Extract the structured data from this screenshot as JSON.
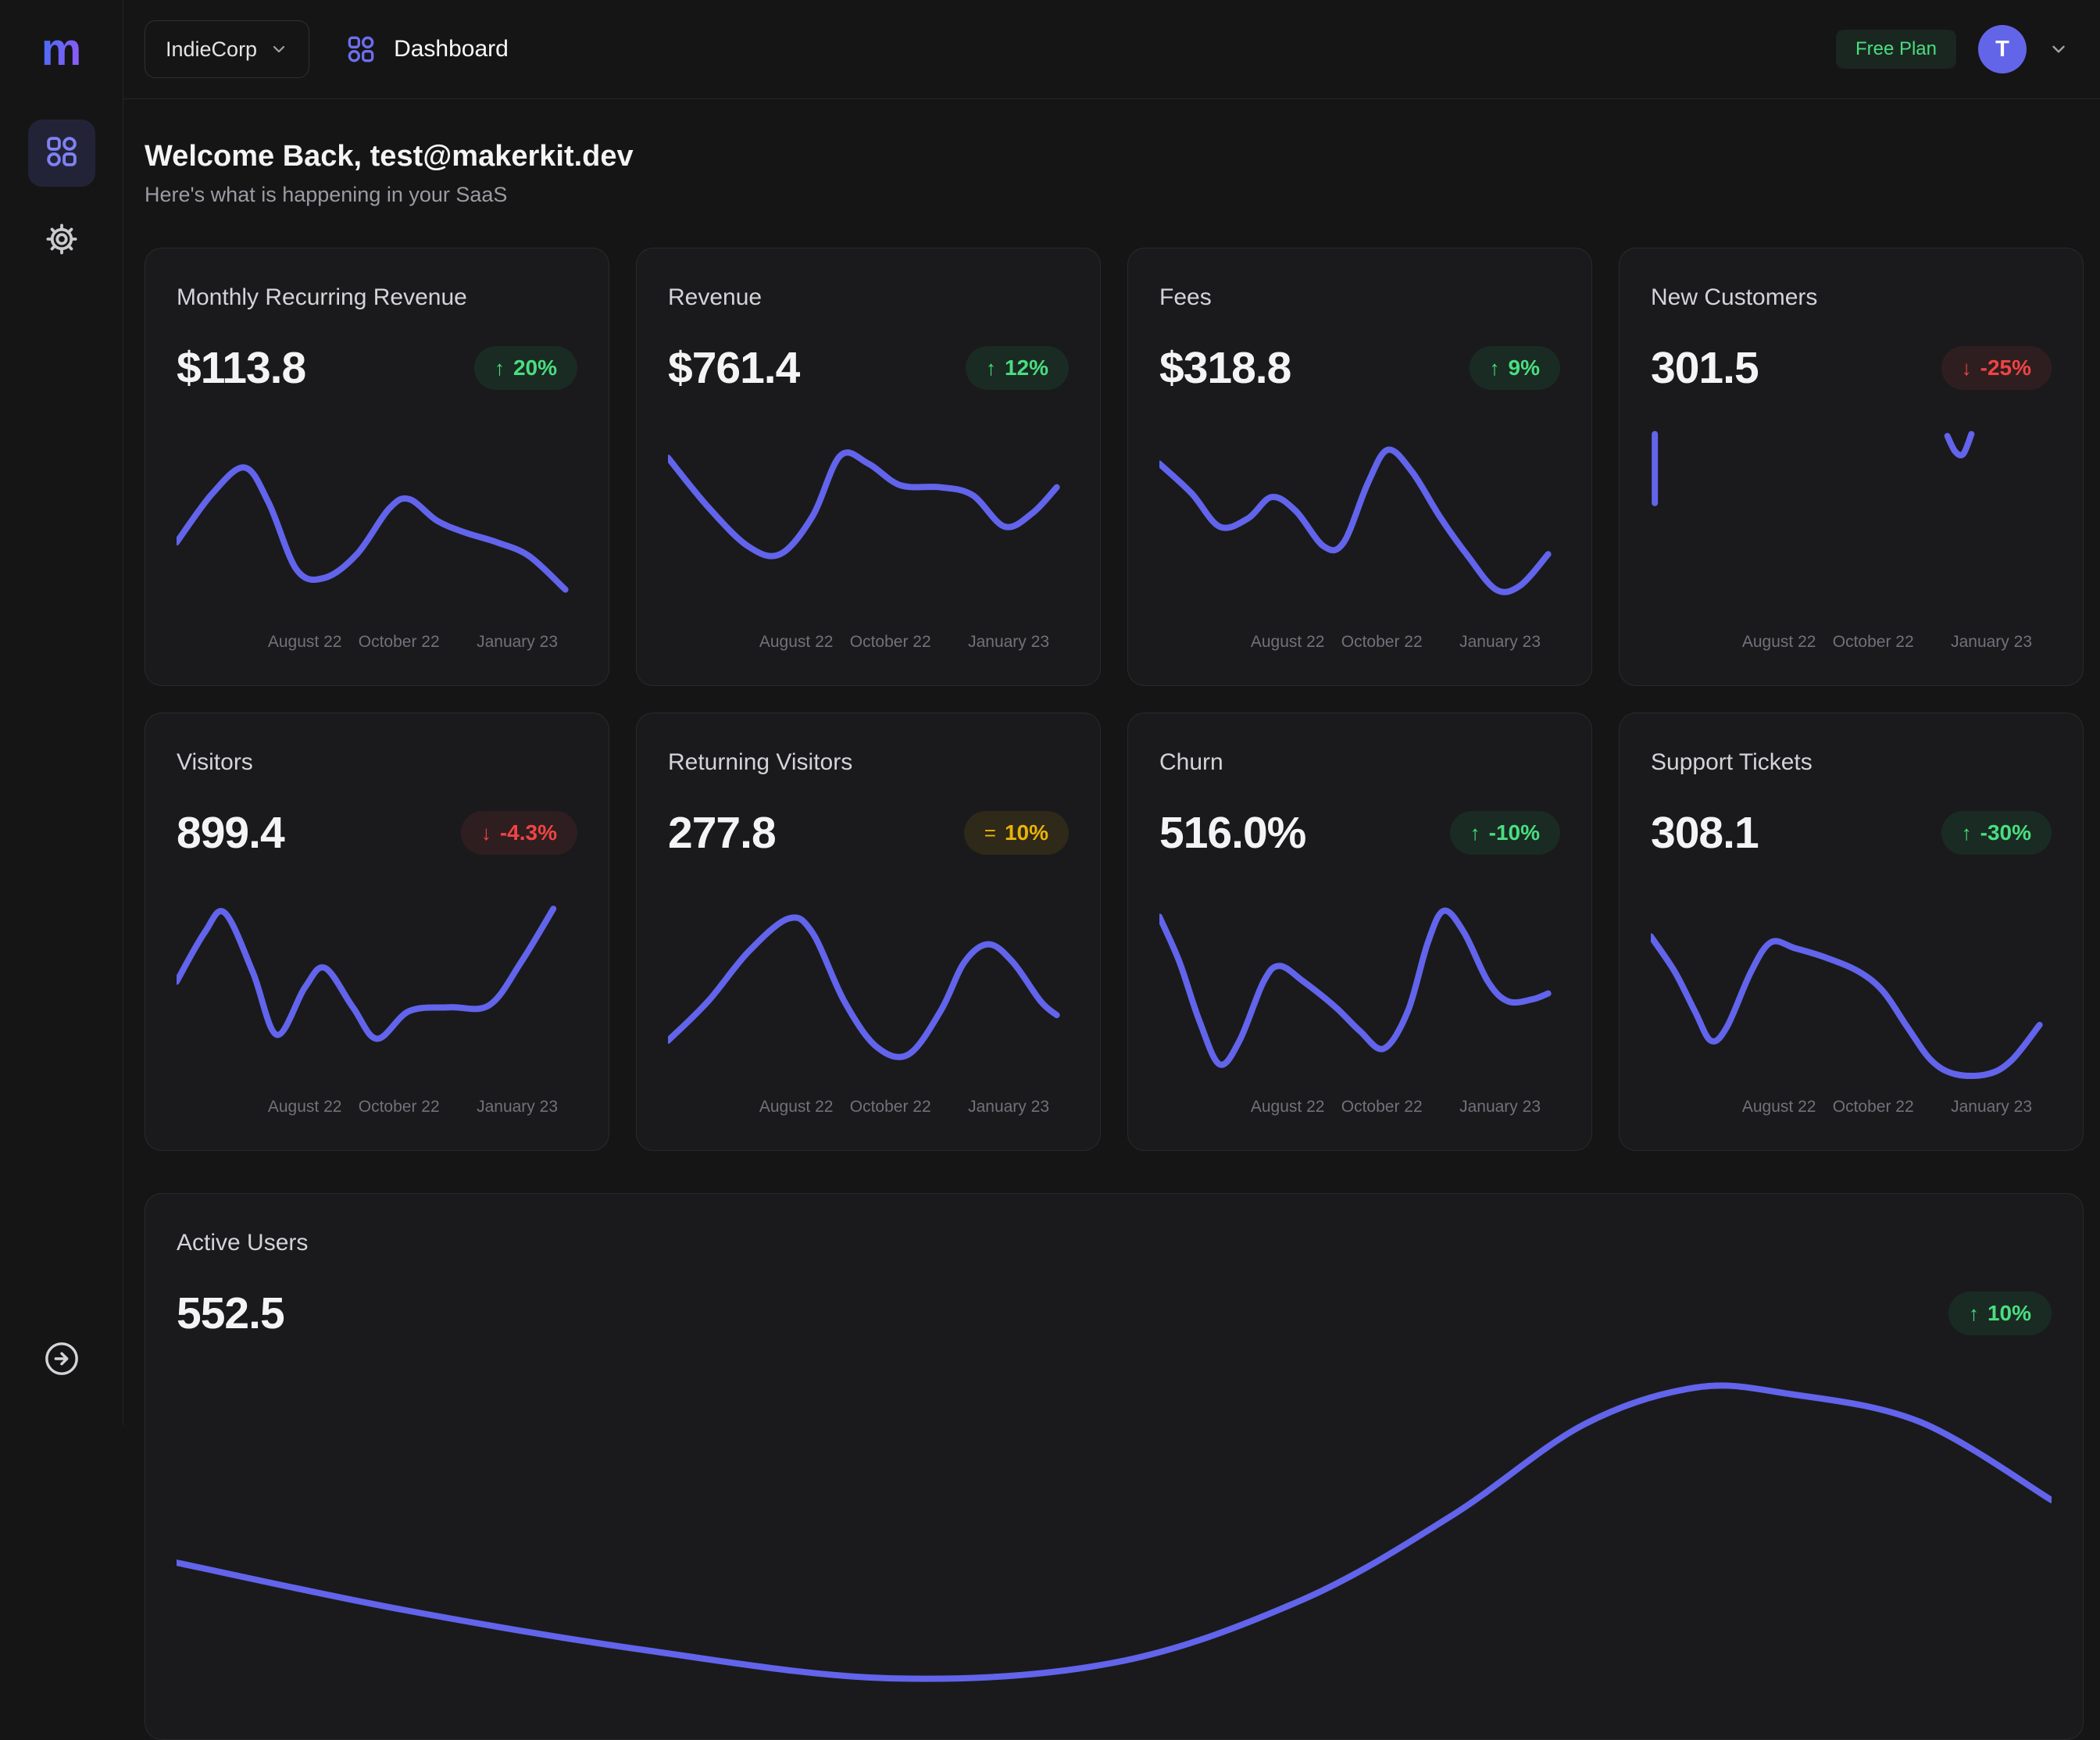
{
  "brand": {
    "logo_letter": "m"
  },
  "sidebar": {
    "items": [
      {
        "icon": "dashboard-grid-icon",
        "active": true
      },
      {
        "icon": "settings-gear-icon",
        "active": false
      }
    ],
    "bottom_icon": "expand-arrow-icon"
  },
  "topbar": {
    "workspace": "IndieCorp",
    "page_title": "Dashboard",
    "plan_badge": "Free Plan",
    "avatar_letter": "T"
  },
  "header": {
    "title": "Welcome Back, test@makerkit.dev",
    "subtitle": "Here's what is happening in your SaaS"
  },
  "colors": {
    "accent": "#6264ec",
    "green": "#4ade80",
    "red": "#ef4444",
    "amber": "#eab308"
  },
  "chart_data": {
    "type": "line",
    "x_labels": [
      "August 22",
      "October 22",
      "January 23"
    ],
    "cards": [
      {
        "title": "Monthly Recurring Revenue",
        "value": "$113.8",
        "symbol": "↑",
        "change": "20%",
        "tone": "green",
        "segments": [
          [
            [
              0,
              58
            ],
            [
              9,
              33
            ],
            [
              17,
              20
            ],
            [
              23,
              38
            ],
            [
              30,
              72
            ],
            [
              37,
              76
            ],
            [
              45,
              64
            ],
            [
              53,
              41
            ],
            [
              58,
              36
            ],
            [
              65,
              47
            ],
            [
              72,
              53
            ],
            [
              80,
              58
            ],
            [
              88,
              65
            ],
            [
              97,
              82
            ]
          ]
        ]
      },
      {
        "title": "Revenue",
        "value": "$761.4",
        "symbol": "↑",
        "change": "12%",
        "tone": "green",
        "segments": [
          [
            [
              0,
              15
            ],
            [
              10,
              40
            ],
            [
              20,
              60
            ],
            [
              28,
              64
            ],
            [
              36,
              45
            ],
            [
              43,
              14
            ],
            [
              50,
              18
            ],
            [
              58,
              29
            ],
            [
              68,
              30
            ],
            [
              76,
              34
            ],
            [
              84,
              50
            ],
            [
              91,
              43
            ],
            [
              97,
              30
            ]
          ]
        ]
      },
      {
        "title": "Fees",
        "value": "$318.8",
        "symbol": "↑",
        "change": "9%",
        "tone": "green",
        "segments": [
          [
            [
              0,
              18
            ],
            [
              8,
              33
            ],
            [
              15,
              50
            ],
            [
              22,
              46
            ],
            [
              28,
              35
            ],
            [
              34,
              42
            ],
            [
              41,
              60
            ],
            [
              46,
              58
            ],
            [
              52,
              28
            ],
            [
              57,
              11
            ],
            [
              63,
              22
            ],
            [
              70,
              45
            ],
            [
              77,
              65
            ],
            [
              84,
              82
            ],
            [
              90,
              80
            ],
            [
              97,
              64
            ]
          ]
        ]
      },
      {
        "title": "New Customers",
        "value": "301.5",
        "symbol": "↓",
        "change": "-25%",
        "tone": "red",
        "segments": [
          [
            [
              1,
              3
            ],
            [
              1,
              38
            ]
          ],
          [
            [
              74,
              4
            ],
            [
              76,
              12
            ],
            [
              78,
              13
            ],
            [
              80,
              3
            ]
          ]
        ]
      },
      {
        "title": "Visitors",
        "value": "899.4",
        "symbol": "↓",
        "change": "-4.3%",
        "tone": "red",
        "segments": [
          [
            [
              0,
              45
            ],
            [
              7,
              20
            ],
            [
              12,
              10
            ],
            [
              19,
              40
            ],
            [
              25,
              72
            ],
            [
              32,
              48
            ],
            [
              37,
              38
            ],
            [
              44,
              58
            ],
            [
              50,
              74
            ],
            [
              58,
              60
            ],
            [
              68,
              58
            ],
            [
              78,
              57
            ],
            [
              86,
              35
            ],
            [
              94,
              8
            ]
          ]
        ]
      },
      {
        "title": "Returning Visitors",
        "value": "277.8",
        "symbol": "=",
        "change": "10%",
        "tone": "amber",
        "segments": [
          [
            [
              0,
              75
            ],
            [
              10,
              55
            ],
            [
              20,
              30
            ],
            [
              30,
              13
            ],
            [
              36,
              20
            ],
            [
              44,
              55
            ],
            [
              52,
              78
            ],
            [
              60,
              82
            ],
            [
              68,
              60
            ],
            [
              74,
              35
            ],
            [
              80,
              26
            ],
            [
              86,
              35
            ],
            [
              93,
              55
            ],
            [
              97,
              62
            ]
          ]
        ]
      },
      {
        "title": "Churn",
        "value": "516.0%",
        "symbol": "↑",
        "change": "-10%",
        "tone": "green",
        "segments": [
          [
            [
              0,
              12
            ],
            [
              5,
              35
            ],
            [
              10,
              65
            ],
            [
              15,
              87
            ],
            [
              20,
              75
            ],
            [
              26,
              45
            ],
            [
              30,
              37
            ],
            [
              36,
              45
            ],
            [
              44,
              58
            ],
            [
              50,
              70
            ],
            [
              56,
              79
            ],
            [
              62,
              60
            ],
            [
              67,
              25
            ],
            [
              71,
              9
            ],
            [
              76,
              20
            ],
            [
              82,
              45
            ],
            [
              87,
              55
            ],
            [
              93,
              54
            ],
            [
              97,
              51
            ]
          ]
        ]
      },
      {
        "title": "Support Tickets",
        "value": "308.1",
        "symbol": "↑",
        "change": "-30%",
        "tone": "green",
        "segments": [
          [
            [
              0,
              22
            ],
            [
              6,
              40
            ],
            [
              11,
              60
            ],
            [
              15,
              75
            ],
            [
              19,
              68
            ],
            [
              25,
              40
            ],
            [
              30,
              25
            ],
            [
              36,
              28
            ],
            [
              44,
              33
            ],
            [
              52,
              40
            ],
            [
              58,
              50
            ],
            [
              64,
              68
            ],
            [
              70,
              85
            ],
            [
              76,
              92
            ],
            [
              84,
              92
            ],
            [
              90,
              85
            ],
            [
              97,
              67
            ]
          ]
        ]
      }
    ],
    "active_card": {
      "title": "Active Users",
      "value": "552.5",
      "symbol": "↑",
      "change": "10%",
      "tone": "green",
      "segments": [
        [
          [
            0,
            60
          ],
          [
            12,
            75
          ],
          [
            25,
            88
          ],
          [
            38,
            97
          ],
          [
            50,
            92
          ],
          [
            60,
            72
          ],
          [
            68,
            45
          ],
          [
            75,
            16
          ],
          [
            81,
            4
          ],
          [
            86,
            6
          ],
          [
            93,
            15
          ],
          [
            100,
            40
          ]
        ]
      ]
    }
  }
}
